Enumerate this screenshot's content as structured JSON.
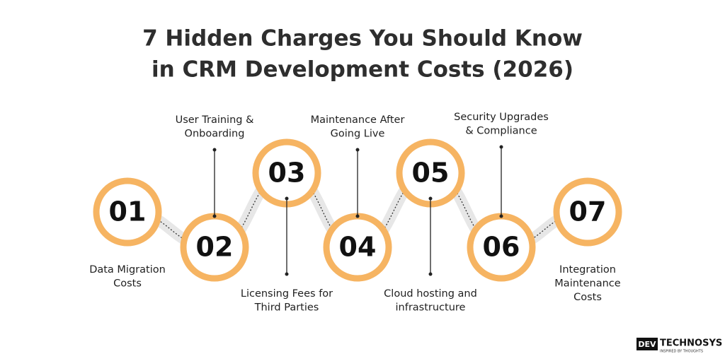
{
  "title": {
    "lines": [
      "7 Hidden Charges You Should Know",
      "in CRM Development Costs (2026)"
    ]
  },
  "items": [
    {
      "number": "01",
      "label": [
        "Data Migration",
        "Costs"
      ]
    },
    {
      "number": "02",
      "label": [
        "User Training &",
        "Onboarding"
      ]
    },
    {
      "number": "03",
      "label": [
        "Licensing Fees for",
        "Third Parties"
      ]
    },
    {
      "number": "04",
      "label": [
        "Maintenance After",
        "Going Live"
      ]
    },
    {
      "number": "05",
      "label": [
        "Cloud hosting and",
        "infrastructure"
      ]
    },
    {
      "number": "06",
      "label": [
        "Security Upgrades",
        "& Compliance"
      ]
    },
    {
      "number": "07",
      "label": [
        "Integration",
        "Maintenance",
        "Costs"
      ]
    }
  ],
  "logo": {
    "box": "DEV",
    "name": "TECHNOSYS",
    "tagline": "INSPIRED BY THOUGHTS"
  }
}
